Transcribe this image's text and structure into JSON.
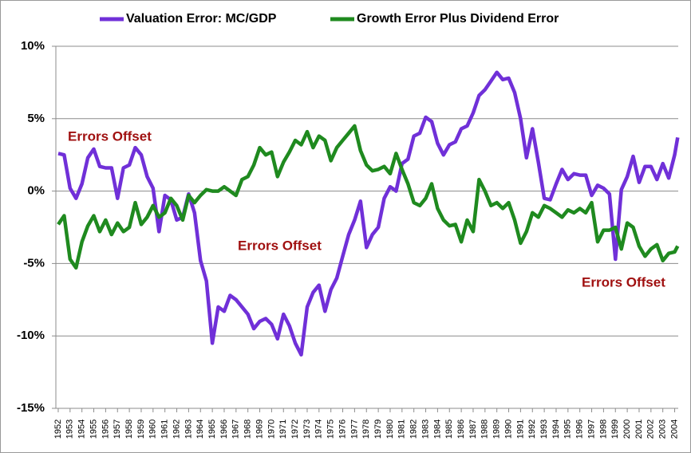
{
  "chart_data": {
    "type": "line",
    "series": [
      {
        "name": "Valuation Error: MC/GDP",
        "color": "#7030d8",
        "values": [
          2.6,
          2.5,
          0.2,
          -0.5,
          0.5,
          2.3,
          2.9,
          1.7,
          1.6,
          1.6,
          -0.5,
          1.6,
          1.8,
          3.0,
          2.5,
          1.0,
          0.2,
          -2.8,
          -0.3,
          -0.6,
          -2.0,
          -1.8,
          -0.2,
          -1.5,
          -4.8,
          -6.2,
          -10.5,
          -8.0,
          -8.3,
          -7.2,
          -7.5,
          -8.0,
          -8.5,
          -9.5,
          -9.0,
          -8.8,
          -9.2,
          -10.2,
          -8.5,
          -9.3,
          -10.5,
          -11.3,
          -8.0,
          -7.0,
          -6.5,
          -8.3,
          -6.8,
          -6.0,
          -4.5,
          -3.0,
          -2.0,
          -0.7,
          -3.9,
          -3.0,
          -2.5,
          -0.5,
          0.3,
          0.0,
          1.9,
          2.2,
          3.8,
          4.0,
          5.1,
          4.8,
          3.3,
          2.5,
          3.2,
          3.4,
          4.3,
          4.5,
          5.4,
          6.6,
          7.0,
          7.6,
          8.2,
          7.7,
          7.8,
          6.8,
          5.0,
          2.3,
          4.3,
          2.0,
          -0.5,
          -0.6,
          0.5,
          1.5,
          0.8,
          1.2,
          1.1,
          1.1,
          -0.3,
          0.4,
          0.2,
          -0.2,
          -4.7,
          0.1,
          1.0,
          2.4,
          0.6,
          1.7,
          1.7,
          0.8,
          1.9,
          0.9,
          2.5,
          3.7
        ]
      },
      {
        "name": "Growth Error Plus Dividend Error",
        "color": "#1f8a1f",
        "values": [
          -2.3,
          -1.7,
          -4.7,
          -5.3,
          -3.5,
          -2.4,
          -1.7,
          -2.8,
          -2.0,
          -3.0,
          -2.2,
          -2.8,
          -2.5,
          -0.8,
          -2.3,
          -1.8,
          -1.0,
          -1.8,
          -1.5,
          -0.5,
          -1.0,
          -2.0,
          -0.3,
          -0.8,
          -0.3,
          0.1,
          0.0,
          0.0,
          0.3,
          0.0,
          -0.3,
          0.8,
          1.0,
          1.8,
          3.0,
          2.5,
          2.7,
          1.0,
          2.0,
          2.7,
          3.5,
          3.2,
          4.1,
          3.0,
          3.8,
          3.5,
          2.1,
          3.0,
          3.5,
          4.0,
          4.5,
          2.8,
          1.8,
          1.4,
          1.5,
          1.7,
          1.2,
          2.6,
          1.5,
          0.5,
          -0.8,
          -1.0,
          -0.5,
          0.5,
          -1.2,
          -2.0,
          -2.4,
          -2.3,
          -3.5,
          -2.0,
          -2.8,
          0.8,
          0.0,
          -1.0,
          -0.8,
          -1.2,
          -0.8,
          -2.0,
          -3.6,
          -2.8,
          -1.5,
          -1.8,
          -1.0,
          -1.2,
          -1.5,
          -1.8,
          -1.3,
          -1.5,
          -1.2,
          -1.5,
          -0.8,
          -3.5,
          -2.7,
          -2.7,
          -2.5,
          -4.0,
          -2.2,
          -2.5,
          -3.8,
          -4.5,
          -4.0,
          -3.7,
          -4.8,
          -4.3,
          -4.2,
          -3.8
        ]
      }
    ],
    "x": [
      1952,
      1952.5,
      1953,
      1953.5,
      1954,
      1954.5,
      1955,
      1955.5,
      1956,
      1956.5,
      1957,
      1957.5,
      1958,
      1958.5,
      1959,
      1959.5,
      1960,
      1960.5,
      1961,
      1961.5,
      1962,
      1962.5,
      1963,
      1963.5,
      1964,
      1964.5,
      1965,
      1965.5,
      1966,
      1966.5,
      1967,
      1967.5,
      1968,
      1968.5,
      1969,
      1969.5,
      1970,
      1970.5,
      1971,
      1971.5,
      1972,
      1972.5,
      1973,
      1973.5,
      1974,
      1974.5,
      1975,
      1975.5,
      1976,
      1976.5,
      1977,
      1977.5,
      1978,
      1978.5,
      1979,
      1979.5,
      1980,
      1980.5,
      1981,
      1981.5,
      1982,
      1982.5,
      1983,
      1983.5,
      1984,
      1984.5,
      1985,
      1985.5,
      1986,
      1986.5,
      1987,
      1987.5,
      1988,
      1988.5,
      1989,
      1989.5,
      1990,
      1990.5,
      1991,
      1991.5,
      1992,
      1992.5,
      1993,
      1993.5,
      1994,
      1994.5,
      1995,
      1995.5,
      1996,
      1996.5,
      1997,
      1997.5,
      1998,
      1998.5,
      1999,
      1999.5,
      2000,
      2000.5,
      2001,
      2001.5,
      2002,
      2002.5,
      2003,
      2003.5,
      2004,
      2004.25
    ],
    "xlim": [
      1951.8,
      2004.3
    ],
    "xticks": [
      1952,
      1953,
      1954,
      1955,
      1956,
      1957,
      1958,
      1959,
      1960,
      1961,
      1962,
      1963,
      1964,
      1965,
      1966,
      1967,
      1968,
      1969,
      1970,
      1971,
      1972,
      1973,
      1974,
      1975,
      1976,
      1977,
      1978,
      1979,
      1980,
      1981,
      1982,
      1983,
      1984,
      1985,
      1986,
      1987,
      1988,
      1989,
      1990,
      1991,
      1992,
      1993,
      1994,
      1995,
      1996,
      1997,
      1998,
      1999,
      2000,
      2001,
      2002,
      2003,
      2004
    ],
    "ylim": [
      -15,
      10
    ],
    "yticks": [
      {
        "value": -15,
        "label": "-15%"
      },
      {
        "value": -10,
        "label": "-10%"
      },
      {
        "value": -5,
        "label": "-5%"
      },
      {
        "value": 0,
        "label": "0%"
      },
      {
        "value": 5,
        "label": "5%"
      },
      {
        "value": 10,
        "label": "10%"
      }
    ],
    "grid": true,
    "legend": "top",
    "annotations": [
      "Errors Offset",
      "Errors Offset",
      "Errors Offset"
    ]
  }
}
